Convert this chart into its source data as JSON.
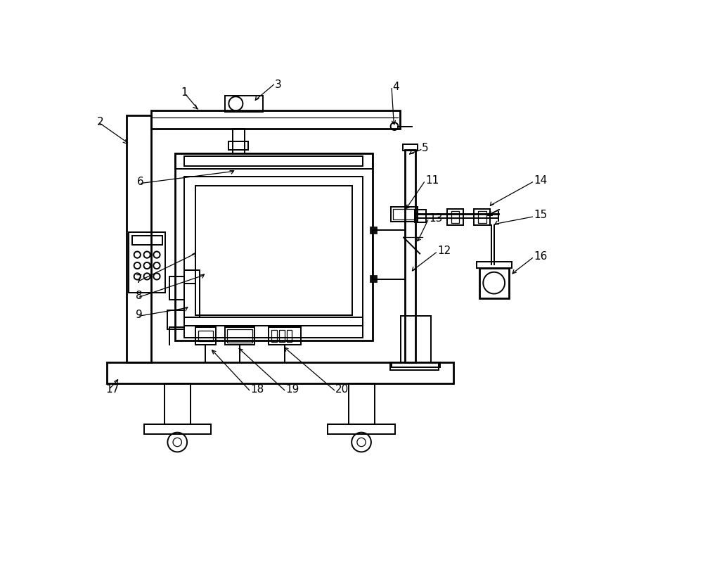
{
  "bg_color": "#ffffff",
  "lc": "#000000",
  "lw": 1.4,
  "lw_thin": 0.9,
  "lw_thick": 2.0
}
